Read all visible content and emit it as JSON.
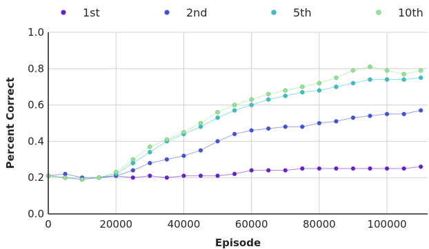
{
  "chart_data": {
    "type": "line",
    "title": "",
    "xlabel": "Episode",
    "ylabel": "Percent Correct",
    "xlim": [
      0,
      112000
    ],
    "ylim": [
      0.0,
      1.0
    ],
    "xticks": [
      0,
      20000,
      40000,
      60000,
      80000,
      100000
    ],
    "xtick_labels": [
      "0",
      "20000",
      "40000",
      "60000",
      "80000",
      "100000"
    ],
    "yticks": [
      0.0,
      0.2,
      0.4,
      0.6,
      0.8,
      1.0
    ],
    "ytick_labels": [
      "0.0",
      "0.2",
      "0.4",
      "0.6",
      "0.8",
      "1.0"
    ],
    "grid": true,
    "legend_position": "top",
    "x": [
      0,
      5000,
      10000,
      15000,
      20000,
      25000,
      30000,
      35000,
      40000,
      45000,
      50000,
      55000,
      60000,
      65000,
      70000,
      75000,
      80000,
      85000,
      90000,
      95000,
      100000,
      105000,
      110000
    ],
    "series": [
      {
        "name": "1st",
        "color": "#6a1bd6",
        "values": [
          0.21,
          0.2,
          0.19,
          0.2,
          0.21,
          0.2,
          0.21,
          0.2,
          0.21,
          0.21,
          0.21,
          0.22,
          0.24,
          0.24,
          0.24,
          0.25,
          0.25,
          0.25,
          0.25,
          0.25,
          0.25,
          0.25,
          0.26
        ]
      },
      {
        "name": "2nd",
        "color": "#3f51e0",
        "values": [
          0.21,
          0.22,
          0.2,
          0.2,
          0.21,
          0.24,
          0.28,
          0.3,
          0.32,
          0.35,
          0.4,
          0.44,
          0.46,
          0.47,
          0.48,
          0.48,
          0.5,
          0.51,
          0.53,
          0.54,
          0.55,
          0.55,
          0.57
        ]
      },
      {
        "name": "5th",
        "color": "#2ec4c8",
        "values": [
          0.21,
          0.2,
          0.19,
          0.2,
          0.22,
          0.28,
          0.34,
          0.4,
          0.44,
          0.48,
          0.53,
          0.57,
          0.6,
          0.63,
          0.65,
          0.67,
          0.68,
          0.7,
          0.72,
          0.74,
          0.74,
          0.74,
          0.75
        ]
      },
      {
        "name": "10th",
        "color": "#8ce88c",
        "values": [
          0.21,
          0.2,
          0.19,
          0.2,
          0.23,
          0.3,
          0.37,
          0.41,
          0.45,
          0.5,
          0.56,
          0.6,
          0.63,
          0.66,
          0.68,
          0.7,
          0.72,
          0.75,
          0.79,
          0.81,
          0.79,
          0.77,
          0.79
        ]
      }
    ]
  }
}
